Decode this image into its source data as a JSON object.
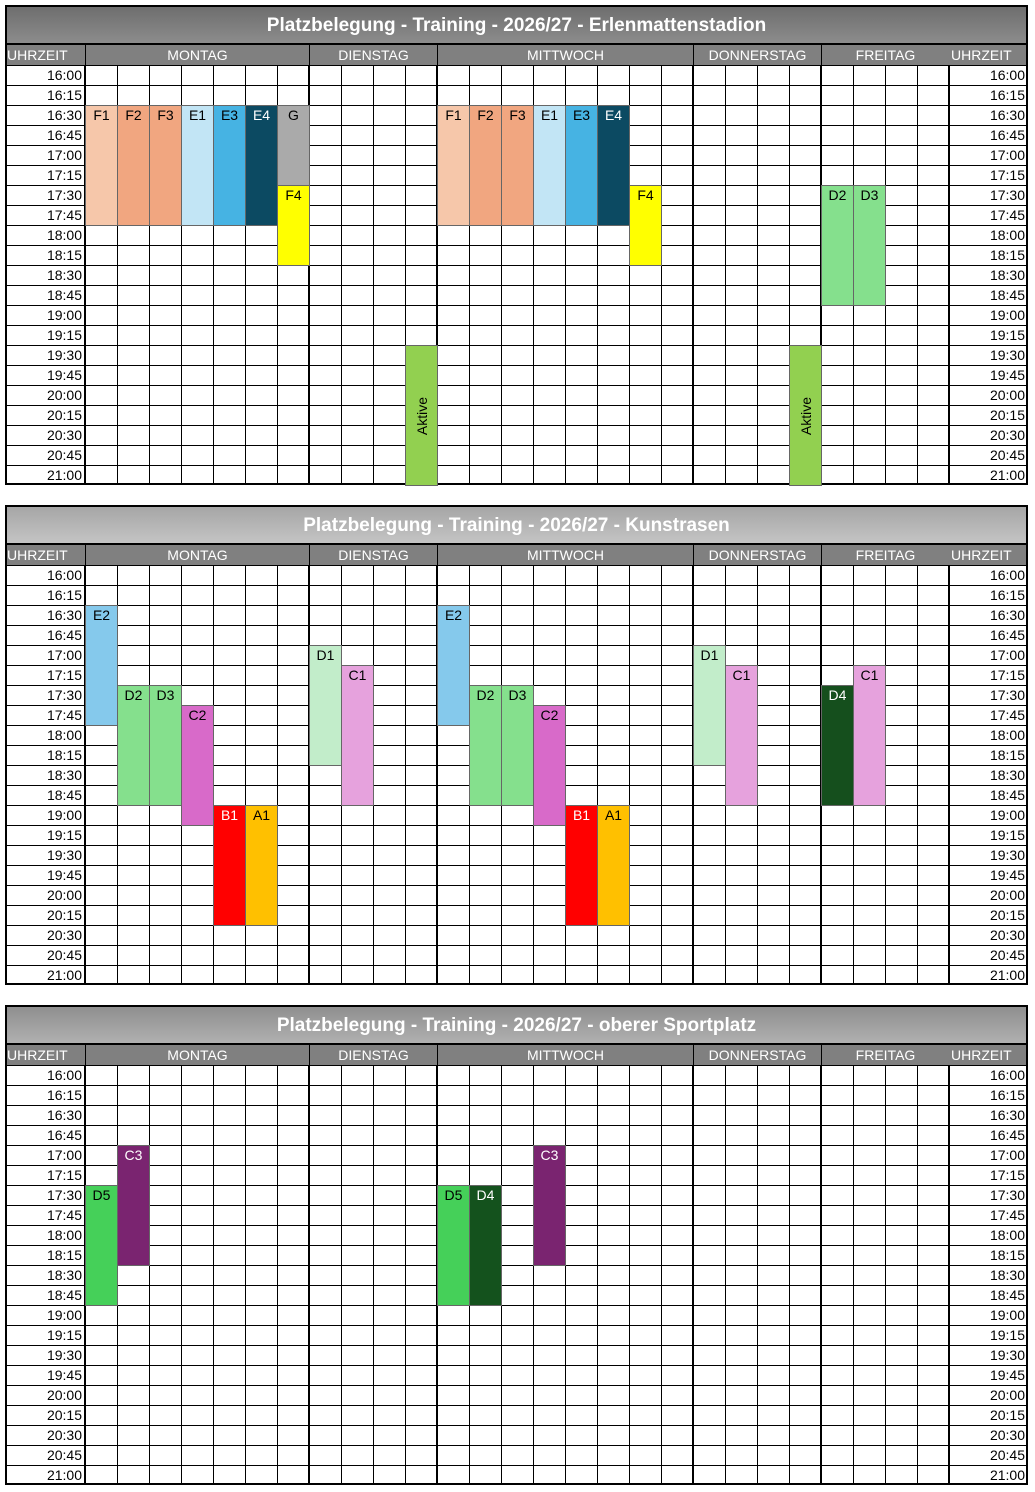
{
  "tables": [
    {
      "title": "Platzbelegung - Training - 2026/27 - Erlenmattenstadion",
      "time_header_left": "UHRZEIT",
      "time_header_right": "UHRZEIT",
      "times": [
        "16:00",
        "16:15",
        "16:30",
        "16:45",
        "17:00",
        "17:15",
        "17:30",
        "17:45",
        "18:00",
        "18:15",
        "18:30",
        "18:45",
        "19:00",
        "19:15",
        "19:30",
        "19:45",
        "20:00",
        "20:15",
        "20:30",
        "20:45",
        "21:00"
      ],
      "days": [
        {
          "name": "MONTAG",
          "blocks": [
            {
              "label": "F1",
              "color": "#f6c7aa",
              "start": "16:30",
              "end": "17:45"
            },
            {
              "label": "F2",
              "color": "#f1a680",
              "start": "16:30",
              "end": "17:45"
            },
            {
              "label": "F3",
              "color": "#f1a680",
              "start": "16:30",
              "end": "17:45"
            },
            {
              "label": "E1",
              "color": "#c2e5f5",
              "start": "16:30",
              "end": "17:45"
            },
            {
              "label": "E3",
              "color": "#46b3e3",
              "start": "16:30",
              "end": "17:45"
            },
            {
              "label": "E4",
              "color": "#0c4a62",
              "start": "16:30",
              "end": "17:45"
            },
            {
              "label": "G",
              "color": "#aaaaaa",
              "start": "16:30",
              "end": "17:15"
            },
            {
              "label": "F4",
              "color": "#ffff00",
              "start": "17:30",
              "end": "18:15"
            }
          ]
        },
        {
          "name": "DIENSTAG",
          "blocks": [
            {
              "label": "Aktive",
              "color": "#92d050",
              "start": "19:30",
              "end": "21:00"
            }
          ]
        },
        {
          "name": "MITTWOCH",
          "blocks": [
            {
              "label": "F1",
              "color": "#f6c7aa",
              "start": "16:30",
              "end": "17:45"
            },
            {
              "label": "F2",
              "color": "#f1a680",
              "start": "16:30",
              "end": "17:45"
            },
            {
              "label": "F3",
              "color": "#f1a680",
              "start": "16:30",
              "end": "17:45"
            },
            {
              "label": "E1",
              "color": "#c2e5f5",
              "start": "16:30",
              "end": "17:45"
            },
            {
              "label": "E3",
              "color": "#46b3e3",
              "start": "16:30",
              "end": "17:45"
            },
            {
              "label": "E4",
              "color": "#0c4a62",
              "start": "16:30",
              "end": "17:45"
            },
            {
              "label": "F4",
              "color": "#ffff00",
              "start": "17:30",
              "end": "18:15"
            }
          ]
        },
        {
          "name": "DONNERSTAG",
          "blocks": [
            {
              "label": "Aktive",
              "color": "#92d050",
              "start": "19:30",
              "end": "21:00"
            }
          ]
        },
        {
          "name": "FREITAG",
          "blocks": [
            {
              "label": "D2",
              "color": "#85e08d",
              "start": "17:30",
              "end": "18:45"
            },
            {
              "label": "D3",
              "color": "#85e08d",
              "start": "17:30",
              "end": "18:45"
            }
          ]
        }
      ]
    },
    {
      "title": "Platzbelegung - Training - 2026/27 - Kunstrasen",
      "time_header_left": "UHRZEIT",
      "time_header_right": "UHRZEIT",
      "times": [
        "16:00",
        "16:15",
        "16:30",
        "16:45",
        "17:00",
        "17:15",
        "17:30",
        "17:45",
        "18:00",
        "18:15",
        "18:30",
        "18:45",
        "19:00",
        "19:15",
        "19:30",
        "19:45",
        "20:00",
        "20:15",
        "20:30",
        "20:45",
        "21:00"
      ],
      "days": [
        {
          "name": "MONTAG",
          "blocks": [
            {
              "label": "E2",
              "color": "#85c9ec",
              "start": "16:30",
              "end": "17:45"
            },
            {
              "label": "D2",
              "color": "#85e08d",
              "start": "17:30",
              "end": "18:45"
            },
            {
              "label": "D3",
              "color": "#85e08d",
              "start": "17:30",
              "end": "18:45"
            },
            {
              "label": "C2",
              "color": "#d86ac9",
              "start": "17:45",
              "end": "19:00"
            },
            {
              "label": "B1",
              "color": "#ff0000",
              "start": "19:00",
              "end": "20:15"
            },
            {
              "label": "A1",
              "color": "#ffc000",
              "start": "19:00",
              "end": "20:15"
            }
          ]
        },
        {
          "name": "DIENSTAG",
          "blocks": [
            {
              "label": "D1",
              "color": "#c2edca",
              "start": "17:00",
              "end": "18:15"
            },
            {
              "label": "C1",
              "color": "#e6a2dd",
              "start": "17:15",
              "end": "18:45"
            }
          ]
        },
        {
          "name": "MITTWOCH",
          "blocks": [
            {
              "label": "E2",
              "color": "#85c9ec",
              "start": "16:30",
              "end": "17:45"
            },
            {
              "label": "D2",
              "color": "#85e08d",
              "start": "17:30",
              "end": "18:45"
            },
            {
              "label": "D3",
              "color": "#85e08d",
              "start": "17:30",
              "end": "18:45"
            },
            {
              "label": "C2",
              "color": "#d86ac9",
              "start": "17:45",
              "end": "19:00"
            },
            {
              "label": "B1",
              "color": "#ff0000",
              "start": "19:00",
              "end": "20:15"
            },
            {
              "label": "A1",
              "color": "#ffc000",
              "start": "19:00",
              "end": "20:15"
            }
          ]
        },
        {
          "name": "DONNERSTAG",
          "blocks": [
            {
              "label": "D1",
              "color": "#c2edca",
              "start": "17:00",
              "end": "18:15"
            },
            {
              "label": "C1",
              "color": "#e6a2dd",
              "start": "17:15",
              "end": "18:45"
            }
          ]
        },
        {
          "name": "FREITAG",
          "blocks": [
            {
              "label": "D4",
              "color": "#154f1d",
              "start": "17:30",
              "end": "18:45"
            },
            {
              "label": "C1",
              "color": "#e6a2dd",
              "start": "17:15",
              "end": "18:45"
            }
          ]
        }
      ]
    },
    {
      "title": "Platzbelegung - Training - 2026/27 - oberer Sportplatz",
      "time_header_left": "UHRZEIT",
      "time_header_right": "UHRZEIT",
      "times": [
        "16:00",
        "16:15",
        "16:30",
        "16:45",
        "17:00",
        "17:15",
        "17:30",
        "17:45",
        "18:00",
        "18:15",
        "18:30",
        "18:45",
        "19:00",
        "19:15",
        "19:30",
        "19:45",
        "20:00",
        "20:15",
        "20:30",
        "20:45",
        "21:00"
      ],
      "days": [
        {
          "name": "MONTAG",
          "blocks": [
            {
              "label": "D5",
              "color": "#45d059",
              "start": "17:30",
              "end": "18:45"
            },
            {
              "label": "C3",
              "color": "#7a2470",
              "start": "17:00",
              "end": "18:15"
            }
          ]
        },
        {
          "name": "DIENSTAG",
          "blocks": []
        },
        {
          "name": "MITTWOCH",
          "blocks": [
            {
              "label": "D5",
              "color": "#45d059",
              "start": "17:30",
              "end": "18:45"
            },
            {
              "label": "D4",
              "color": "#14521d",
              "start": "17:30",
              "end": "18:45"
            },
            {
              "label": "C3",
              "color": "#7a2470",
              "start": "17:00",
              "end": "18:15"
            }
          ]
        },
        {
          "name": "DONNERSTAG",
          "blocks": []
        },
        {
          "name": "FREITAG",
          "blocks": []
        }
      ]
    }
  ]
}
